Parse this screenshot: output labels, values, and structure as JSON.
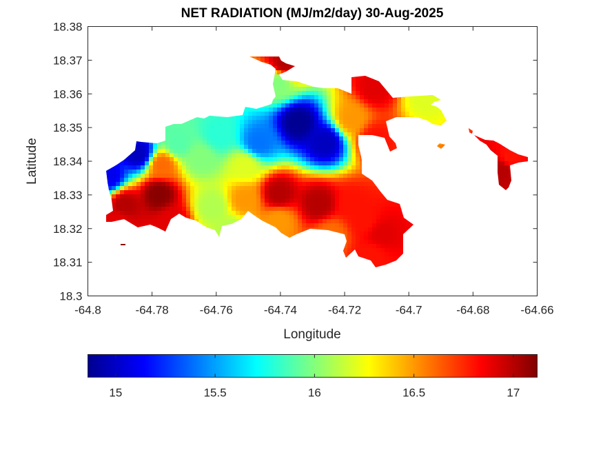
{
  "chart_data": {
    "type": "heatmap",
    "title": "NET RADIATION (MJ/m2/day) 30-Aug-2025",
    "xlabel": "Longitude",
    "ylabel": "Latitude",
    "xlim": [
      -64.8,
      -64.66
    ],
    "ylim": [
      18.3,
      18.38
    ],
    "xticks": [
      "-64.8",
      "-64.78",
      "-64.76",
      "-64.74",
      "-64.72",
      "-64.7",
      "-64.68",
      "-64.66"
    ],
    "yticks": [
      "18.3",
      "18.31",
      "18.32",
      "18.33",
      "18.34",
      "18.35",
      "18.36",
      "18.37",
      "18.38"
    ],
    "grid": false,
    "colormap": "jet",
    "colorbar": {
      "orientation": "horizontal",
      "location": "bottom",
      "range": [
        14.86,
        17.12
      ],
      "ticks": [
        "15",
        "15.5",
        "16",
        "16.5",
        "17"
      ]
    },
    "samples": [
      {
        "lon": -64.7935,
        "lat": 18.3355,
        "value": 15.1
      },
      {
        "lon": -64.7842,
        "lat": 18.3422,
        "value": 15.0
      },
      {
        "lon": -64.7718,
        "lat": 18.3454,
        "value": 15.9
      },
      {
        "lon": -64.7593,
        "lat": 18.3478,
        "value": 15.8
      },
      {
        "lon": -64.7468,
        "lat": 18.3455,
        "value": 15.4
      },
      {
        "lon": -64.7344,
        "lat": 18.3514,
        "value": 14.9
      },
      {
        "lon": -64.7261,
        "lat": 18.3456,
        "value": 15.0
      },
      {
        "lon": -64.7179,
        "lat": 18.3526,
        "value": 16.5
      },
      {
        "lon": -64.7105,
        "lat": 18.3619,
        "value": 16.9
      },
      {
        "lon": -64.7105,
        "lat": 18.3463,
        "value": 16.8
      },
      {
        "lon": -64.7405,
        "lat": 18.3634,
        "value": 16.0
      },
      {
        "lon": -64.7389,
        "lat": 18.3689,
        "value": 17.0
      },
      {
        "lon": -64.7779,
        "lat": 18.3302,
        "value": 17.1
      },
      {
        "lon": -64.7884,
        "lat": 18.327,
        "value": 17.0
      },
      {
        "lon": -64.7904,
        "lat": 18.3223,
        "value": 16.9
      },
      {
        "lon": -64.7739,
        "lat": 18.3224,
        "value": 16.9
      },
      {
        "lon": -64.7613,
        "lat": 18.3265,
        "value": 16.1
      },
      {
        "lon": -64.751,
        "lat": 18.3285,
        "value": 16.5
      },
      {
        "lon": -64.751,
        "lat": 18.3388,
        "value": 16.2
      },
      {
        "lon": -64.7551,
        "lat": 18.3192,
        "value": 16.1
      },
      {
        "lon": -64.7406,
        "lat": 18.3303,
        "value": 17.0
      },
      {
        "lon": -64.7406,
        "lat": 18.3223,
        "value": 16.5
      },
      {
        "lon": -64.728,
        "lat": 18.3274,
        "value": 17.0
      },
      {
        "lon": -64.7241,
        "lat": 18.3183,
        "value": 16.6
      },
      {
        "lon": -64.7178,
        "lat": 18.3273,
        "value": 16.8
      },
      {
        "lon": -64.7136,
        "lat": 18.3223,
        "value": 16.8
      },
      {
        "lon": -64.7085,
        "lat": 18.3185,
        "value": 16.9
      },
      {
        "lon": -64.7118,
        "lat": 18.312,
        "value": 16.8
      },
      {
        "lon": -64.695,
        "lat": 18.3593,
        "value": 16.2
      },
      {
        "lon": -64.671,
        "lat": 18.3375,
        "value": 17.0
      },
      {
        "lon": -64.6685,
        "lat": 18.341,
        "value": 16.8
      },
      {
        "lon": -64.7649,
        "lat": 18.341,
        "value": 16.0
      },
      {
        "lon": -64.777,
        "lat": 18.3388,
        "value": 16.6
      }
    ]
  }
}
